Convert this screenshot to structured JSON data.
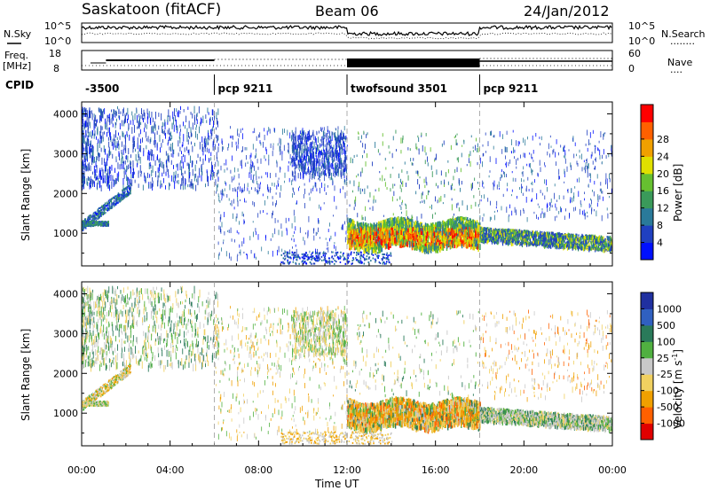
{
  "header": {
    "station": "Saskatoon (fitACF)",
    "beam": "Beam 06",
    "date": "24/Jan/2012"
  },
  "side_labels": {
    "nsky": "N.Sky",
    "nsearch": "N.Search",
    "nsearch_dots": "........",
    "freq_line1": "Freq.",
    "freq_line2": "[MHz]",
    "nave": "Nave",
    "nave_dots": "....",
    "cpid": "CPID"
  },
  "noise_axis": {
    "top": "10^5",
    "bottom": "10^0"
  },
  "freq_axis": {
    "left_top": "18",
    "left_bottom": "8",
    "right_top": "60",
    "right_bottom": "0"
  },
  "cpid_segments": [
    {
      "label": "-3500",
      "start": 0,
      "end": 6
    },
    {
      "label": "pcp 9211",
      "start": 6,
      "end": 12
    },
    {
      "label": "twofsound 3501",
      "start": 12,
      "end": 18
    },
    {
      "label": "pcp 9211",
      "start": 18,
      "end": 24
    }
  ],
  "chart_data": [
    {
      "type": "heatmap",
      "panel": "power",
      "xlabel": "Time UT",
      "ylabel": "Slant Range [km]",
      "xlim": [
        0,
        24
      ],
      "ylim": [
        180,
        4300
      ],
      "yticks": [
        1000,
        2000,
        3000,
        4000
      ],
      "colorbar": {
        "label": "Power [dB]",
        "ticks": [
          "4",
          "8",
          "12",
          "16",
          "20",
          "24",
          "28"
        ],
        "range": [
          0,
          30
        ],
        "colors": [
          "#0010ff",
          "#2040c0",
          "#2a7a9a",
          "#3a9a5a",
          "#66c030",
          "#e0e000",
          "#f0a000",
          "#ff6000",
          "#ff0000"
        ]
      },
      "echo_regions": [
        {
          "description_time": [
            0.0,
            2.0
          ],
          "range_km": [
            1200,
            2200
          ],
          "level": "low"
        },
        {
          "description_time": [
            12.0,
            18.0
          ],
          "range_km": [
            700,
            1300
          ],
          "level": "high"
        },
        {
          "description_time": [
            18.0,
            24.0
          ],
          "range_km": [
            700,
            1100
          ],
          "level": "medium"
        }
      ]
    },
    {
      "type": "heatmap",
      "panel": "velocity",
      "xlabel": "Time UT",
      "ylabel": "Slant Range [km]",
      "xlim": [
        0,
        24
      ],
      "ylim": [
        180,
        4300
      ],
      "yticks": [
        1000,
        2000,
        3000,
        4000
      ],
      "colorbar": {
        "label": "Velocity [m s^-1]",
        "ticks": [
          "1000",
          "500",
          "100",
          "25",
          "-25",
          "-100",
          "-500",
          "-1000"
        ],
        "colors": [
          "#2030a0",
          "#3060c0",
          "#2a7a5a",
          "#50b040",
          "#c8c8c8",
          "#f0d060",
          "#f0a000",
          "#ff6000",
          "#e00000"
        ]
      }
    }
  ],
  "x_ticks": [
    "00:00",
    "04:00",
    "08:00",
    "12:00",
    "16:00",
    "20:00",
    "00:00"
  ],
  "x_tick_hours": [
    0,
    4,
    8,
    12,
    16,
    20,
    24
  ],
  "x_label": "Time UT",
  "y_label": "Slant Range [km]",
  "power_cb_label": "Power [dB]",
  "velocity_cb_label_main": "Velocity [m s",
  "velocity_cb_label_sup": "-1",
  "velocity_cb_label_end": "]"
}
